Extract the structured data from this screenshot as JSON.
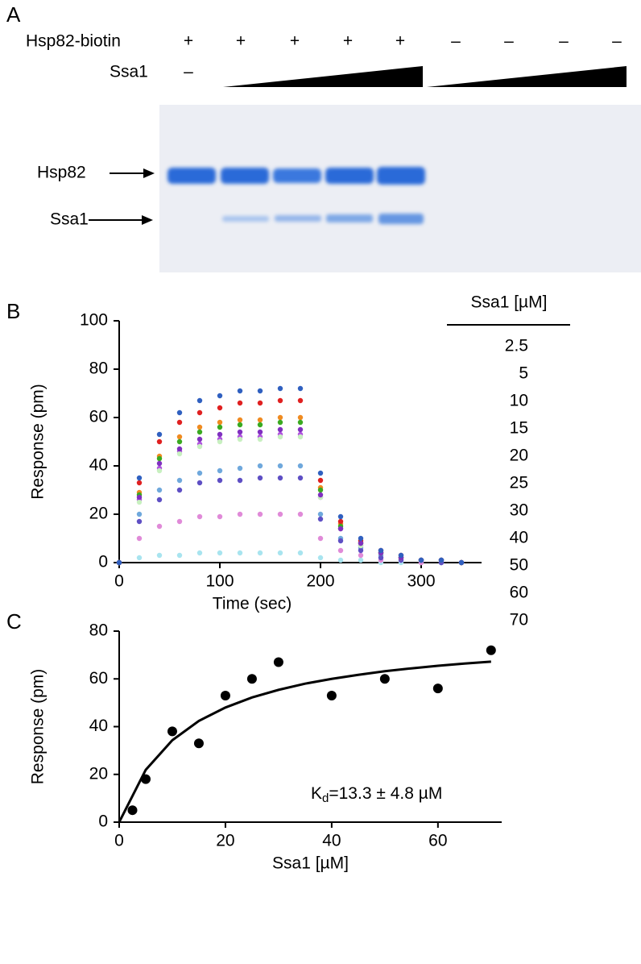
{
  "gel": {
    "panel_label": "A",
    "row1_label": "Hsp82-biotin",
    "row1_signs": [
      "+",
      "+",
      "+",
      "+",
      "+",
      "–",
      "–",
      "–",
      "–"
    ],
    "row2_label": "Ssa1",
    "row2_sign": "–",
    "band_labels": [
      "Hsp82",
      "Ssa1"
    ]
  },
  "chart_data": [
    {
      "type": "scatter",
      "panel_label": "B",
      "y_label": "Response (pm)",
      "x_label": "Time (sec)",
      "xlim": [
        0,
        360
      ],
      "ylim": [
        0,
        100
      ],
      "xticks": [
        0,
        100,
        200,
        300
      ],
      "yticks": [
        0,
        20,
        40,
        60,
        80,
        100
      ],
      "legend_title": "Ssa1 [µM]",
      "x": [
        0,
        20,
        40,
        60,
        80,
        100,
        120,
        140,
        160,
        180,
        200,
        220,
        240,
        260,
        280,
        300,
        320,
        340
      ],
      "series": [
        {
          "name": "2.5",
          "color": "#a8e4ef",
          "values": [
            0,
            2,
            3,
            3,
            4,
            4,
            4,
            4,
            4,
            4,
            2,
            1,
            1,
            0,
            0,
            0,
            0,
            0
          ]
        },
        {
          "name": "5",
          "color": "#e08ad8",
          "values": [
            0,
            10,
            15,
            17,
            19,
            19,
            20,
            20,
            20,
            20,
            10,
            5,
            3,
            1,
            1,
            0,
            0,
            0
          ]
        },
        {
          "name": "10",
          "color": "#6fa8dc",
          "values": [
            0,
            20,
            30,
            34,
            37,
            38,
            39,
            40,
            40,
            40,
            20,
            10,
            6,
            3,
            2,
            1,
            0,
            0
          ]
        },
        {
          "name": "15",
          "color": "#5e4fc4",
          "values": [
            0,
            17,
            26,
            30,
            33,
            34,
            34,
            35,
            35,
            35,
            18,
            9,
            5,
            2,
            1,
            1,
            0,
            0
          ]
        },
        {
          "name": "20",
          "color": "#b050e0",
          "values": [
            0,
            26,
            39,
            46,
            49,
            51,
            52,
            52,
            53,
            53,
            27,
            14,
            7,
            4,
            2,
            1,
            1,
            0
          ]
        },
        {
          "name": "25",
          "color": "#f08a20",
          "values": [
            0,
            29,
            44,
            52,
            56,
            58,
            59,
            59,
            60,
            60,
            31,
            16,
            8,
            4,
            2,
            1,
            1,
            0
          ]
        },
        {
          "name": "30",
          "color": "#e02020",
          "values": [
            0,
            33,
            50,
            58,
            62,
            64,
            66,
            66,
            67,
            67,
            34,
            17,
            9,
            5,
            3,
            1,
            1,
            0
          ]
        },
        {
          "name": "40",
          "color": "#c8f0c0",
          "values": [
            0,
            25,
            38,
            45,
            48,
            50,
            51,
            51,
            52,
            52,
            27,
            14,
            7,
            4,
            2,
            1,
            1,
            0
          ]
        },
        {
          "name": "50",
          "color": "#3aaa20",
          "values": [
            0,
            28,
            43,
            50,
            54,
            56,
            57,
            57,
            58,
            58,
            30,
            15,
            8,
            4,
            2,
            1,
            1,
            0
          ]
        },
        {
          "name": "60",
          "color": "#8030c0",
          "values": [
            0,
            27,
            41,
            47,
            51,
            53,
            54,
            54,
            55,
            55,
            28,
            14,
            8,
            4,
            2,
            1,
            1,
            0
          ]
        },
        {
          "name": "70",
          "color": "#3060c0",
          "values": [
            0,
            35,
            53,
            62,
            67,
            69,
            71,
            71,
            72,
            72,
            37,
            19,
            10,
            5,
            3,
            1,
            1,
            0
          ]
        }
      ]
    },
    {
      "type": "scatter",
      "panel_label": "C",
      "y_label": "Response (pm)",
      "x_label": "Ssa1 [µM]",
      "xlim": [
        0,
        72
      ],
      "ylim": [
        0,
        80
      ],
      "xticks": [
        0,
        20,
        40,
        60
      ],
      "yticks": [
        0,
        20,
        40,
        60,
        80
      ],
      "points": {
        "color": "#000000",
        "x": [
          2.5,
          5,
          10,
          15,
          20,
          25,
          30,
          40,
          50,
          60,
          70
        ],
        "values": [
          5,
          18,
          38,
          33,
          53,
          60,
          67,
          53,
          60,
          56,
          72
        ]
      },
      "fit": {
        "color": "#000000",
        "x": [
          0,
          5,
          10,
          15,
          20,
          25,
          30,
          35,
          40,
          45,
          50,
          55,
          60,
          65,
          70
        ],
        "values": [
          0,
          21.9,
          34.3,
          42.4,
          48,
          52.2,
          55.4,
          58,
          60,
          61.7,
          63.2,
          64.4,
          65.5,
          66.4,
          67.2
        ]
      },
      "annotation": {
        "text": "K",
        "subscript": "d",
        "rest": "=13.3 ± 4.8 µM"
      }
    }
  ]
}
